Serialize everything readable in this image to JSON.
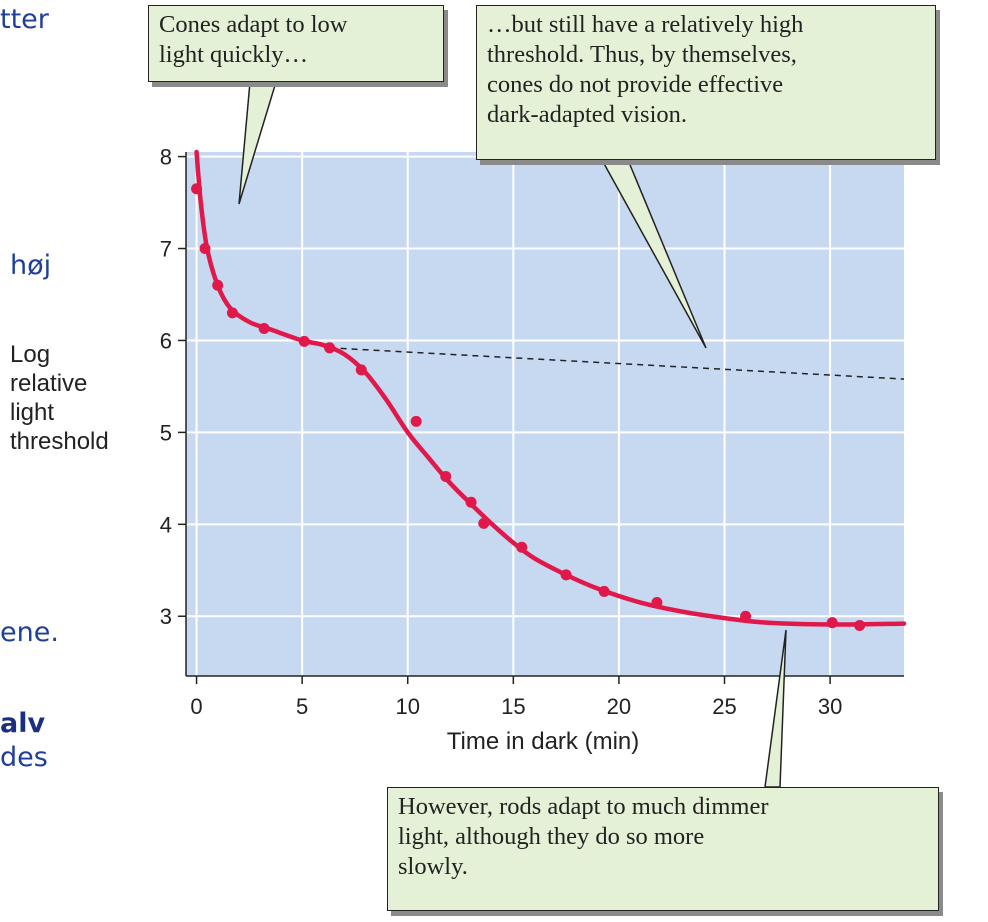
{
  "background_text": {
    "frag1": "tter",
    "frag2": "høj",
    "frag3": "ene.",
    "frag4": "alv",
    "frag5": "des"
  },
  "colors": {
    "plot_bg": "#c6d9f1",
    "grid": "#ffffff",
    "curve": "#e0194a",
    "callout_bg": "#e4f1d6"
  },
  "callouts": {
    "cones_quick": [
      "Cones adapt to low",
      "light quickly…"
    ],
    "cones_threshold": [
      "…but still have a relatively high",
      "threshold. Thus, by themselves,",
      "cones do not provide effective",
      "dark-adapted vision."
    ],
    "rods": [
      "However, rods adapt to much dimmer",
      "light, although they do so more",
      "slowly."
    ]
  },
  "chart_data": {
    "type": "line",
    "title": "",
    "xlabel": "Time in dark (min)",
    "ylabel_lines": [
      "Log",
      "relative",
      "light",
      "threshold"
    ],
    "xlim": [
      -0.5,
      33.5
    ],
    "ylim": [
      2.35,
      8.05
    ],
    "x_ticks": [
      0,
      5,
      10,
      15,
      20,
      25,
      30
    ],
    "y_ticks": [
      3,
      4,
      5,
      6,
      7,
      8
    ],
    "grid": true,
    "points": [
      {
        "x": 0,
        "y": 7.65
      },
      {
        "x": 0.4,
        "y": 7.0
      },
      {
        "x": 1.0,
        "y": 6.6
      },
      {
        "x": 1.7,
        "y": 6.3
      },
      {
        "x": 3.2,
        "y": 6.13
      },
      {
        "x": 5.1,
        "y": 5.99
      },
      {
        "x": 6.3,
        "y": 5.92
      },
      {
        "x": 7.8,
        "y": 5.68
      },
      {
        "x": 10.4,
        "y": 5.12
      },
      {
        "x": 11.8,
        "y": 4.52
      },
      {
        "x": 13.0,
        "y": 4.24
      },
      {
        "x": 13.6,
        "y": 4.01
      },
      {
        "x": 15.4,
        "y": 3.75
      },
      {
        "x": 17.5,
        "y": 3.45
      },
      {
        "x": 19.3,
        "y": 3.27
      },
      {
        "x": 21.8,
        "y": 3.15
      },
      {
        "x": 26.0,
        "y": 3.0
      },
      {
        "x": 30.1,
        "y": 2.93
      },
      {
        "x": 31.4,
        "y": 2.9
      }
    ],
    "fit_curve": [
      [
        0,
        8.05
      ],
      [
        0.2,
        7.5
      ],
      [
        0.5,
        7.0
      ],
      [
        1.0,
        6.6
      ],
      [
        1.6,
        6.35
      ],
      [
        2.5,
        6.2
      ],
      [
        3.5,
        6.12
      ],
      [
        5.0,
        6.0
      ],
      [
        6.0,
        5.95
      ],
      [
        7.0,
        5.85
      ],
      [
        8.0,
        5.65
      ],
      [
        9.0,
        5.35
      ],
      [
        10.0,
        5.0
      ],
      [
        11.0,
        4.72
      ],
      [
        12.0,
        4.45
      ],
      [
        13.0,
        4.22
      ],
      [
        14.0,
        4.0
      ],
      [
        15.0,
        3.8
      ],
      [
        16.0,
        3.63
      ],
      [
        17.5,
        3.45
      ],
      [
        19.0,
        3.3
      ],
      [
        21.0,
        3.15
      ],
      [
        23.0,
        3.05
      ],
      [
        25.0,
        2.98
      ],
      [
        27.0,
        2.93
      ],
      [
        30.0,
        2.91
      ],
      [
        33.5,
        2.92
      ]
    ],
    "cone_extrapolation": [
      [
        6.3,
        5.92
      ],
      [
        33.5,
        5.58
      ]
    ]
  }
}
